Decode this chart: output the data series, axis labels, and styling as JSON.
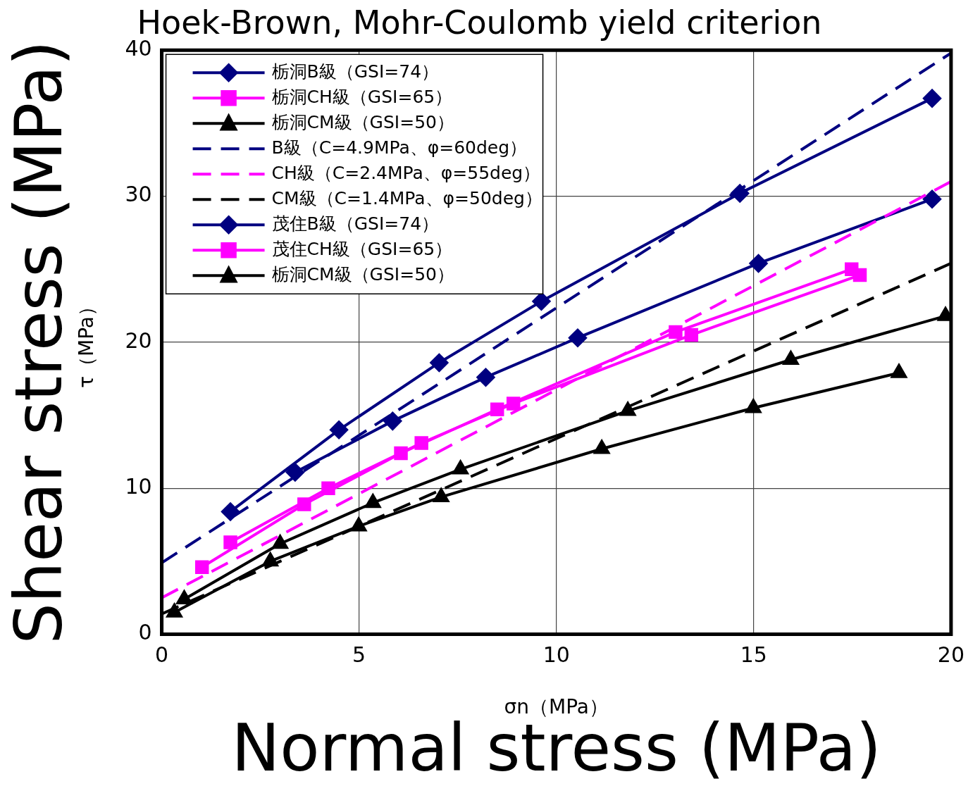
{
  "chart_data": {
    "type": "line",
    "title": "Hoek-Brown, Mohr-Coulomb yield criterion",
    "xlabel": "Normal stress (MPa)",
    "ylabel": "Shear stress (MPa)",
    "annotations": [
      "σn（MPa）",
      "τ（MPa）"
    ],
    "xlim": [
      0,
      20
    ],
    "xticks": [
      0,
      5,
      10,
      15,
      20
    ],
    "ylim": [
      0,
      40
    ],
    "yticks": [
      0,
      10,
      20,
      30,
      40
    ],
    "grid": true,
    "legend": "top left",
    "series": [
      {
        "name": "栃洞B級（GSI=74）",
        "color": "#000080",
        "marker": "diamond",
        "line_style": "solid",
        "x": [
          1.74,
          4.49,
          7.03,
          9.62,
          14.65,
          19.52
        ],
        "values": [
          8.4,
          14.0,
          18.6,
          22.8,
          30.2,
          36.7
        ]
      },
      {
        "name": "栃洞CH級（GSI=65）",
        "color": "#ff00ff",
        "marker": "square",
        "line_style": "solid",
        "x": [
          1.02,
          3.61,
          6.06,
          8.5,
          13.02,
          17.48
        ],
        "values": [
          4.6,
          8.9,
          12.4,
          15.4,
          20.7,
          25.0
        ]
      },
      {
        "name": "栃洞CM級（GSI=50）",
        "color": "#000000",
        "marker": "triangle",
        "line_style": "solid",
        "x": [
          0.32,
          2.75,
          4.99,
          7.08,
          11.15,
          14.99,
          18.68
        ],
        "values": [
          1.5,
          5.0,
          7.4,
          9.4,
          12.7,
          15.5,
          17.9
        ]
      },
      {
        "name": "B級（C=4.9MPa、φ=60deg）",
        "color": "#000080",
        "marker": "none",
        "line_style": "dashed",
        "x": [
          0,
          20
        ],
        "values": [
          4.9,
          39.8
        ]
      },
      {
        "name": "CH級（C=2.4MPa、φ=55deg）",
        "color": "#ff00ff",
        "marker": "none",
        "line_style": "dashed",
        "x": [
          0,
          20
        ],
        "values": [
          2.5,
          31.0
        ]
      },
      {
        "name": "CM級（C=1.4MPa、φ=50deg）",
        "color": "#000000",
        "marker": "none",
        "line_style": "dashed",
        "x": [
          0,
          20
        ],
        "values": [
          1.4,
          25.4
        ]
      },
      {
        "name": "茂住B級（GSI=74）",
        "color": "#000080",
        "marker": "diamond",
        "line_style": "solid",
        "x": [
          3.38,
          5.85,
          8.21,
          10.54,
          15.12,
          19.52
        ],
        "values": [
          11.1,
          14.6,
          17.6,
          20.3,
          25.4,
          29.8
        ]
      },
      {
        "name": "茂住CH級（GSI=65）",
        "color": "#ff00ff",
        "marker": "square",
        "line_style": "solid",
        "x": [
          1.74,
          4.22,
          6.58,
          8.91,
          13.42,
          17.69
        ],
        "values": [
          6.3,
          10.0,
          13.1,
          15.8,
          20.5,
          24.6
        ]
      },
      {
        "name": "栃洞CM級（GSI=50）",
        "color": "#000000",
        "marker": "triangle",
        "line_style": "solid",
        "x": [
          0.57,
          3.0,
          5.35,
          7.57,
          11.81,
          15.94,
          19.86
        ],
        "values": [
          2.4,
          6.2,
          9.0,
          11.3,
          15.3,
          18.8,
          21.8
        ]
      }
    ]
  }
}
